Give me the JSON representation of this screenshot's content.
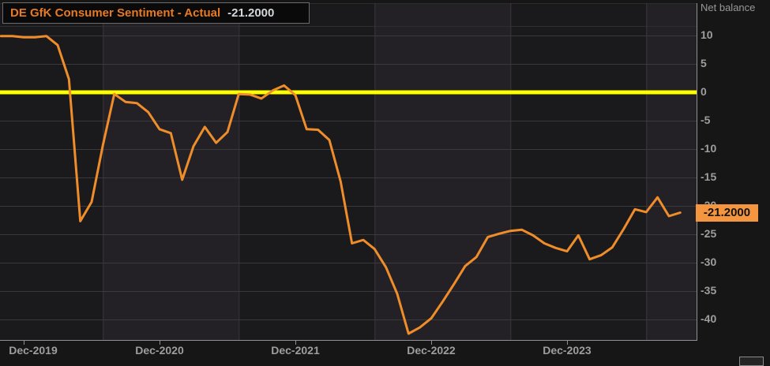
{
  "header": {
    "title": "DE GfK Consumer Sentiment - Actual",
    "value": "-21.2000",
    "axis_title": "Net balance"
  },
  "badge": {
    "label": "-21.2000"
  },
  "colors": {
    "page_bg": "#161616",
    "band_dark": "#1a191b",
    "band_light": "#232126",
    "grid": "#3a393c",
    "frame": "#2d2d2d",
    "axis": "#909090",
    "tick_label": "#9e9e9e",
    "line": "#ef8d2b",
    "zero_line": "#ffff00",
    "badge_bg": "#f4953f",
    "badge_text": "#131313",
    "title_orange": "#e87a22",
    "title_value": "#d3d7da"
  },
  "chart_data": {
    "type": "line",
    "title": "DE GfK Consumer Sentiment - Actual",
    "series_name": "DE GfK Consumer Sentiment",
    "ylabel": "Net balance",
    "xlabel": "",
    "grid": true,
    "legend": "none",
    "ylim": [
      -43.5,
      11.5
    ],
    "y_ticks": [
      10,
      5,
      0,
      -5,
      -10,
      -15,
      -20,
      -25,
      -30,
      -35,
      -40
    ],
    "x_tick_labels": [
      "Dec-2019",
      "Dec-2020",
      "Dec-2021",
      "Dec-2022",
      "Dec-2023"
    ],
    "zero_line": 0,
    "last_value": -21.2,
    "last_value_label": "-21.2000",
    "months": [
      "Oct-2019",
      "Nov-2019",
      "Dec-2019",
      "Jan-2020",
      "Feb-2020",
      "Mar-2020",
      "Apr-2020",
      "May-2020",
      "Jun-2020",
      "Jul-2020",
      "Aug-2020",
      "Sep-2020",
      "Oct-2020",
      "Nov-2020",
      "Dec-2020",
      "Jan-2021",
      "Feb-2021",
      "Mar-2021",
      "Apr-2021",
      "May-2021",
      "Jun-2021",
      "Jul-2021",
      "Aug-2021",
      "Sep-2021",
      "Oct-2021",
      "Nov-2021",
      "Dec-2021",
      "Jan-2022",
      "Feb-2022",
      "Mar-2022",
      "Apr-2022",
      "May-2022",
      "Jun-2022",
      "Jul-2022",
      "Aug-2022",
      "Sep-2022",
      "Oct-2022",
      "Nov-2022",
      "Dec-2022",
      "Jan-2023",
      "Feb-2023",
      "Mar-2023",
      "Apr-2023",
      "May-2023",
      "Jun-2023",
      "Jul-2023",
      "Aug-2023",
      "Sep-2023",
      "Oct-2023",
      "Nov-2023",
      "Dec-2023",
      "Jan-2024",
      "Feb-2024",
      "Mar-2024",
      "Apr-2024",
      "May-2024",
      "Jun-2024",
      "Jul-2024",
      "Aug-2024",
      "Sep-2024",
      "Oct-2024"
    ],
    "values": [
      9.9,
      9.9,
      9.7,
      9.7,
      9.9,
      8.3,
      2.3,
      -22.7,
      -19.3,
      -9.3,
      -0.3,
      -1.7,
      -1.9,
      -3.5,
      -6.5,
      -7.2,
      -15.4,
      -9.5,
      -6.1,
      -8.9,
      -7.0,
      -0.3,
      -0.4,
      -1.1,
      0.3,
      1.2,
      -0.5,
      -6.5,
      -6.6,
      -8.4,
      -15.7,
      -26.6,
      -26.0,
      -27.6,
      -30.8,
      -35.5,
      -42.5,
      -41.4,
      -39.8,
      -36.9,
      -33.8,
      -30.6,
      -29.0,
      -25.5,
      -24.9,
      -24.4,
      -24.2,
      -25.2,
      -26.6,
      -27.4,
      -28.0,
      -25.2,
      -29.4,
      -28.7,
      -27.3,
      -24.1,
      -20.6,
      -21.1,
      -18.5,
      -21.8,
      -21.2
    ]
  }
}
